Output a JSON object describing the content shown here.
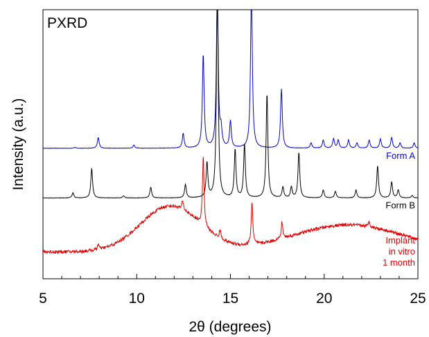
{
  "chart_data": {
    "type": "line",
    "title": "PXRD",
    "xlabel": "2θ (degrees)",
    "ylabel": "Intensity (a.u.)",
    "xlim": [
      5,
      25
    ],
    "ylim": [
      0,
      1
    ],
    "x_ticks": [
      "5",
      "10",
      "15",
      "20",
      "25"
    ],
    "y_ticks": [],
    "grid": false,
    "legend": "none",
    "series": [
      {
        "name": "Form A",
        "color": "#0000cc",
        "label_lines": [
          "Form A"
        ],
        "baseline": 0.485,
        "peaks": [
          {
            "x": 6.7,
            "h": 0.003
          },
          {
            "x": 7.95,
            "h": 0.04
          },
          {
            "x": 9.85,
            "h": 0.012
          },
          {
            "x": 12.48,
            "h": 0.055
          },
          {
            "x": 13.55,
            "h": 0.35
          },
          {
            "x": 14.3,
            "h": 0.62
          },
          {
            "x": 14.5,
            "h": 0.06
          },
          {
            "x": 15.0,
            "h": 0.1
          },
          {
            "x": 16.12,
            "h": 0.62
          },
          {
            "x": 17.72,
            "h": 0.22
          },
          {
            "x": 19.3,
            "h": 0.02
          },
          {
            "x": 19.95,
            "h": 0.03
          },
          {
            "x": 20.5,
            "h": 0.035
          },
          {
            "x": 20.75,
            "h": 0.03
          },
          {
            "x": 21.3,
            "h": 0.03
          },
          {
            "x": 21.75,
            "h": 0.02
          },
          {
            "x": 22.4,
            "h": 0.03
          },
          {
            "x": 23.0,
            "h": 0.035
          },
          {
            "x": 23.6,
            "h": 0.04
          },
          {
            "x": 24.05,
            "h": 0.02
          },
          {
            "x": 24.8,
            "h": 0.02
          }
        ]
      },
      {
        "name": "Form B",
        "color": "#000000",
        "label_lines": [
          "Form B"
        ],
        "baseline": 0.3,
        "peaks": [
          {
            "x": 6.6,
            "h": 0.02
          },
          {
            "x": 7.6,
            "h": 0.11
          },
          {
            "x": 9.3,
            "h": 0.008
          },
          {
            "x": 10.75,
            "h": 0.04
          },
          {
            "x": 12.6,
            "h": 0.05
          },
          {
            "x": 13.75,
            "h": 0.13
          },
          {
            "x": 14.3,
            "h": 0.8
          },
          {
            "x": 15.25,
            "h": 0.18
          },
          {
            "x": 15.75,
            "h": 0.2
          },
          {
            "x": 16.95,
            "h": 0.39
          },
          {
            "x": 17.8,
            "h": 0.04
          },
          {
            "x": 18.25,
            "h": 0.04
          },
          {
            "x": 18.65,
            "h": 0.17
          },
          {
            "x": 19.95,
            "h": 0.03
          },
          {
            "x": 20.6,
            "h": 0.025
          },
          {
            "x": 21.7,
            "h": 0.03
          },
          {
            "x": 22.85,
            "h": 0.12
          },
          {
            "x": 23.6,
            "h": 0.06
          },
          {
            "x": 23.95,
            "h": 0.03
          },
          {
            "x": 24.7,
            "h": 0.01
          }
        ]
      },
      {
        "name": "Implant in vitro 1 month",
        "color": "#dd0000",
        "label_lines": [
          "Implant",
          "in vitro",
          "1 month"
        ],
        "baseline": 0.1,
        "halo": [
          {
            "x": 11.8,
            "h": 0.17,
            "w": 1.6
          },
          {
            "x": 21.3,
            "h": 0.1,
            "w": 3.0
          }
        ],
        "peaks": [
          {
            "x": 7.95,
            "h": 0.02
          },
          {
            "x": 12.45,
            "h": 0.03
          },
          {
            "x": 13.55,
            "h": 0.26
          },
          {
            "x": 14.45,
            "h": 0.03
          },
          {
            "x": 16.15,
            "h": 0.16
          },
          {
            "x": 17.75,
            "h": 0.06
          },
          {
            "x": 22.4,
            "h": 0.02
          }
        ]
      }
    ]
  }
}
